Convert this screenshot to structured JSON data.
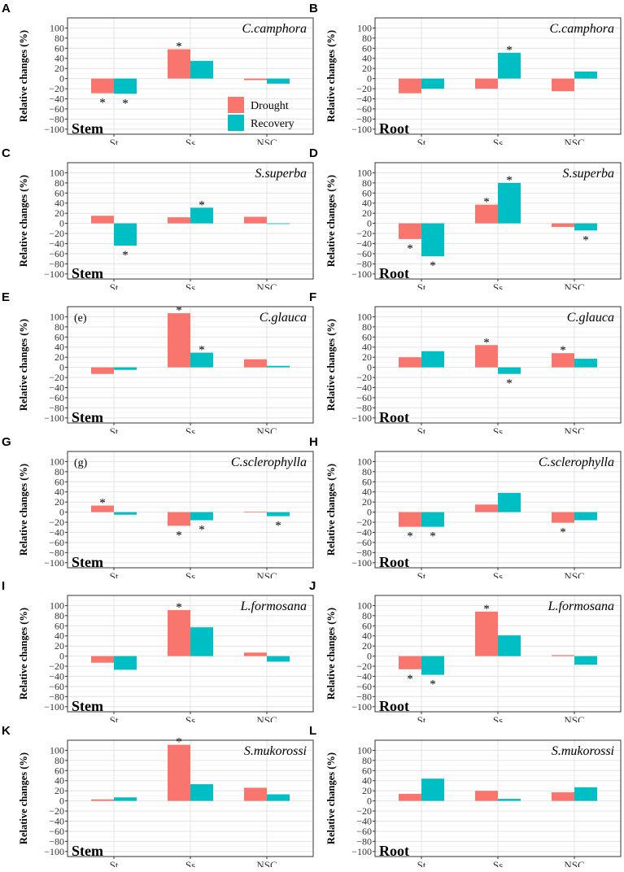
{
  "chart_data": {
    "type": "bar",
    "categories": [
      "St",
      "Ss",
      "NSC"
    ],
    "ylabel": "Relative changes (%)",
    "ylim": [
      -110,
      120
    ],
    "yticks": [
      100,
      80,
      60,
      40,
      20,
      0,
      -20,
      -40,
      -60,
      -80,
      -100
    ],
    "grid": true,
    "legend": {
      "position": "bottom-right of panel A",
      "entries": [
        "Drought",
        "Recovery"
      ]
    },
    "colors": {
      "Drought": "#F8766D",
      "Recovery": "#00BFC4"
    },
    "panels": [
      {
        "label": "A",
        "species": "C.camphora",
        "organ": "Stem",
        "tag": "",
        "drought": [
          -29,
          58,
          -3
        ],
        "recovery": [
          -30,
          35,
          -10
        ],
        "sig_drought": [
          true,
          true,
          false
        ],
        "sig_recovery": [
          true,
          false,
          false
        ]
      },
      {
        "label": "B",
        "species": "C.camphora",
        "organ": "Root",
        "tag": "",
        "drought": [
          -29,
          -20,
          -25
        ],
        "recovery": [
          -20,
          51,
          14
        ],
        "sig_drought": [
          false,
          false,
          false
        ],
        "sig_recovery": [
          false,
          true,
          false
        ]
      },
      {
        "label": "C",
        "species": "S.superba",
        "organ": "Stem",
        "tag": "",
        "drought": [
          15,
          12,
          13
        ],
        "recovery": [
          -44,
          31,
          0
        ],
        "sig_drought": [
          false,
          false,
          false
        ],
        "sig_recovery": [
          true,
          true,
          false
        ]
      },
      {
        "label": "D",
        "species": "S.superba",
        "organ": "Root",
        "tag": "",
        "drought": [
          -31,
          37,
          -7
        ],
        "recovery": [
          -65,
          80,
          -14
        ],
        "sig_drought": [
          true,
          true,
          false
        ],
        "sig_recovery": [
          true,
          true,
          true
        ]
      },
      {
        "label": "E",
        "species": "C.glauca",
        "organ": "Stem",
        "tag": "(e)",
        "drought": [
          -13,
          107,
          16
        ],
        "recovery": [
          -5,
          29,
          3
        ],
        "sig_drought": [
          false,
          true,
          false
        ],
        "sig_recovery": [
          false,
          true,
          false
        ]
      },
      {
        "label": "F",
        "species": "C.glauca",
        "organ": "Root",
        "tag": "",
        "drought": [
          20,
          44,
          28
        ],
        "recovery": [
          32,
          -13,
          17
        ],
        "sig_drought": [
          false,
          true,
          true
        ],
        "sig_recovery": [
          false,
          true,
          false
        ]
      },
      {
        "label": "G",
        "species": "C.sclerophylla",
        "organ": "Stem",
        "tag": "(g)",
        "drought": [
          13,
          -27,
          1
        ],
        "recovery": [
          -5,
          -16,
          -8
        ],
        "sig_drought": [
          true,
          true,
          false
        ],
        "sig_recovery": [
          false,
          true,
          true
        ]
      },
      {
        "label": "H",
        "species": "C.sclerophylla",
        "organ": "Root",
        "tag": "",
        "drought": [
          -29,
          15,
          -21
        ],
        "recovery": [
          -29,
          38,
          -16
        ],
        "sig_drought": [
          true,
          false,
          true
        ],
        "sig_recovery": [
          true,
          false,
          false
        ]
      },
      {
        "label": "I",
        "species": "L.formosana",
        "organ": "Stem",
        "tag": "",
        "drought": [
          -13,
          91,
          7
        ],
        "recovery": [
          -27,
          57,
          -11
        ],
        "sig_drought": [
          false,
          true,
          false
        ],
        "sig_recovery": [
          false,
          false,
          false
        ]
      },
      {
        "label": "J",
        "species": "L.formosana",
        "organ": "Root",
        "tag": "",
        "drought": [
          -26,
          88,
          2
        ],
        "recovery": [
          -37,
          41,
          -17
        ],
        "sig_drought": [
          true,
          true,
          false
        ],
        "sig_recovery": [
          true,
          false,
          false
        ]
      },
      {
        "label": "K",
        "species": "S.mukorossi",
        "organ": "Stem",
        "tag": "",
        "drought": [
          3,
          111,
          26
        ],
        "recovery": [
          7,
          33,
          13
        ],
        "sig_drought": [
          false,
          true,
          false
        ],
        "sig_recovery": [
          false,
          false,
          false
        ]
      },
      {
        "label": "L",
        "species": "S.mukorossi",
        "organ": "Root",
        "tag": "",
        "drought": [
          14,
          20,
          17
        ],
        "recovery": [
          44,
          4,
          27
        ],
        "sig_drought": [
          false,
          false,
          false
        ],
        "sig_recovery": [
          false,
          false,
          false
        ]
      }
    ]
  }
}
